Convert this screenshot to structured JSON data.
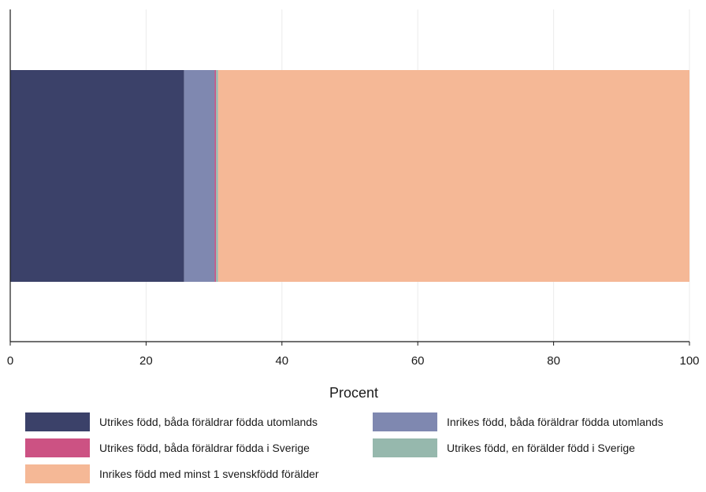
{
  "chart_data": {
    "type": "bar",
    "orientation": "horizontal",
    "stacked": true,
    "xlabel": "Procent",
    "ylabel": "",
    "xlim": [
      0,
      100
    ],
    "xticks": [
      "0",
      "20",
      "40",
      "60",
      "80",
      "100"
    ],
    "grid": true,
    "legend_position": "bottom",
    "series": [
      {
        "name": "Utrikes född, båda föräldrar födda utomlands",
        "value": 25.6,
        "color": "#3b4169"
      },
      {
        "name": "Inrikes född, båda föräldrar födda utomlands",
        "value": 4.5,
        "color": "#7f88b0"
      },
      {
        "name": "Utrikes född, båda föräldrar födda i Sverige",
        "value": 0.2,
        "color": "#cc5283"
      },
      {
        "name": "Utrikes född, en förälder född i Sverige",
        "value": 0.3,
        "color": "#96b8ad"
      },
      {
        "name": "Inrikes född med minst 1 svenskfödd förälder",
        "value": 69.4,
        "color": "#f5b896"
      }
    ]
  }
}
